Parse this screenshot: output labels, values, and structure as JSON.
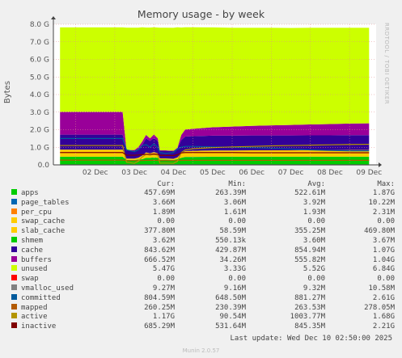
{
  "title": "Memory usage - by week",
  "watermark": "RRDTOOL / TOBI OETIKER",
  "last_update": "Last update: Wed Dec 10 02:50:00 2025",
  "footer": "Munin 2.0.57",
  "chart_data": {
    "type": "area",
    "title": "Memory usage - by week",
    "ylabel": "Bytes",
    "ylim": [
      0,
      8.0
    ],
    "yunit": "G",
    "yticks": [
      "0.0",
      "1.0 G",
      "2.0 G",
      "3.0 G",
      "4.0 G",
      "5.0 G",
      "6.0 G",
      "7.0 G",
      "8.0 G"
    ],
    "ytick_values": [
      0,
      1,
      2,
      3,
      4,
      5,
      6,
      7,
      8
    ],
    "xticks": [
      "02 Dec",
      "03 Dec",
      "04 Dec",
      "05 Dec",
      "06 Dec",
      "07 Dec",
      "08 Dec",
      "09 Dec"
    ],
    "grid": true,
    "x": [
      1.6,
      2.0,
      2.5,
      3.0,
      3.2,
      3.3,
      3.5,
      3.6,
      3.7,
      3.8,
      3.9,
      4.0,
      4.1,
      4.15,
      4.3,
      4.5,
      4.6,
      4.7,
      4.8,
      5.0,
      5.5,
      6.0,
      6.5,
      7.0,
      7.5,
      8.0,
      8.5,
      9.0,
      9.5
    ],
    "series": [
      {
        "name": "apps",
        "color": "#00cc00",
        "values": [
          0.46,
          0.46,
          0.46,
          0.46,
          0.46,
          0.28,
          0.28,
          0.3,
          0.32,
          0.4,
          0.4,
          0.42,
          0.4,
          0.3,
          0.3,
          0.28,
          0.32,
          0.4,
          0.45,
          0.45,
          0.46,
          0.46,
          0.46,
          0.46,
          0.46,
          0.46,
          0.46,
          0.46,
          0.46
        ]
      },
      {
        "name": "page_tables",
        "color": "#0066b3",
        "values": [
          0.004,
          0.004,
          0.004,
          0.004,
          0.004,
          0.003,
          0.003,
          0.003,
          0.003,
          0.003,
          0.003,
          0.003,
          0.003,
          0.003,
          0.003,
          0.003,
          0.003,
          0.003,
          0.004,
          0.004,
          0.004,
          0.004,
          0.004,
          0.004,
          0.004,
          0.004,
          0.004,
          0.004,
          0.004
        ]
      },
      {
        "name": "per_cpu",
        "color": "#ff8000",
        "values": [
          0.002,
          0.002,
          0.002,
          0.002,
          0.002,
          0.002,
          0.002,
          0.002,
          0.002,
          0.002,
          0.002,
          0.002,
          0.002,
          0.002,
          0.002,
          0.002,
          0.002,
          0.002,
          0.002,
          0.002,
          0.002,
          0.002,
          0.002,
          0.002,
          0.002,
          0.002,
          0.002,
          0.002,
          0.002
        ]
      },
      {
        "name": "swap_cache",
        "color": "#ffcc00",
        "values": [
          0,
          0,
          0,
          0,
          0,
          0,
          0,
          0,
          0,
          0,
          0,
          0,
          0,
          0,
          0,
          0,
          0,
          0,
          0,
          0,
          0,
          0,
          0,
          0,
          0,
          0,
          0,
          0,
          0
        ]
      },
      {
        "name": "slab_cache",
        "color": "#ffcc00",
        "values": [
          0.4,
          0.4,
          0.4,
          0.4,
          0.4,
          0.07,
          0.07,
          0.1,
          0.2,
          0.3,
          0.25,
          0.3,
          0.25,
          0.06,
          0.06,
          0.06,
          0.1,
          0.25,
          0.33,
          0.34,
          0.35,
          0.35,
          0.36,
          0.36,
          0.36,
          0.37,
          0.37,
          0.38,
          0.38
        ]
      },
      {
        "name": "shmem",
        "color": "#330099",
        "values": [
          0.004,
          0.004,
          0.004,
          0.004,
          0.004,
          0.001,
          0.001,
          0.001,
          0.002,
          0.003,
          0.003,
          0.003,
          0.003,
          0.001,
          0.001,
          0.001,
          0.002,
          0.003,
          0.004,
          0.004,
          0.004,
          0.004,
          0.004,
          0.004,
          0.004,
          0.004,
          0.004,
          0.004,
          0.004
        ]
      },
      {
        "name": "cache",
        "color": "#330099",
        "values": [
          0.85,
          0.85,
          0.85,
          0.85,
          0.85,
          0.45,
          0.45,
          0.5,
          0.6,
          0.8,
          0.7,
          0.8,
          0.7,
          0.43,
          0.43,
          0.43,
          0.5,
          0.75,
          0.82,
          0.83,
          0.84,
          0.84,
          0.84,
          0.84,
          0.84,
          0.84,
          0.84,
          0.84,
          0.84
        ]
      },
      {
        "name": "buffers",
        "color": "#990099",
        "values": [
          1.3,
          1.3,
          1.3,
          1.3,
          1.3,
          0.04,
          0.04,
          0.1,
          0.2,
          0.2,
          0.15,
          0.2,
          0.15,
          0.03,
          0.03,
          0.03,
          0.05,
          0.3,
          0.4,
          0.42,
          0.48,
          0.52,
          0.55,
          0.58,
          0.6,
          0.62,
          0.64,
          0.66,
          0.67
        ]
      },
      {
        "name": "unused",
        "color": "#ccff00",
        "values": [
          4.8,
          4.8,
          4.8,
          4.8,
          4.8,
          6.96,
          6.96,
          6.8,
          6.5,
          6.1,
          6.3,
          6.1,
          6.3,
          6.98,
          6.98,
          6.99,
          6.85,
          6.1,
          5.82,
          5.78,
          5.68,
          5.62,
          5.58,
          5.55,
          5.52,
          5.5,
          5.48,
          5.45,
          5.44
        ]
      }
    ],
    "lines": [
      {
        "name": "swap",
        "color": "#808080",
        "values": [
          0,
          0,
          0,
          0,
          0,
          0,
          0,
          0,
          0,
          0,
          0,
          0,
          0,
          0,
          0,
          0,
          0,
          0,
          0,
          0,
          0,
          0,
          0,
          0,
          0,
          0,
          0,
          0,
          0
        ]
      },
      {
        "name": "committed",
        "color": "#005a9c",
        "values": [
          1.5,
          1.5,
          1.5,
          1.5,
          1.5,
          0.85,
          0.75,
          0.85,
          1.1,
          1.15,
          1.0,
          1.2,
          1.0,
          0.7,
          0.65,
          0.7,
          0.9,
          1.0,
          1.05,
          1.05,
          1.02,
          1.0,
          0.98,
          0.95,
          0.9,
          0.85,
          0.82,
          0.8,
          0.8
        ]
      },
      {
        "name": "mapped",
        "color": "#b35a00",
        "values": [
          0.27,
          0.27,
          0.27,
          0.27,
          0.27,
          0.24,
          0.24,
          0.24,
          0.25,
          0.26,
          0.26,
          0.26,
          0.26,
          0.24,
          0.24,
          0.24,
          0.25,
          0.26,
          0.26,
          0.26,
          0.26,
          0.26,
          0.26,
          0.26,
          0.26,
          0.26,
          0.26,
          0.26,
          0.26
        ]
      },
      {
        "name": "active",
        "color": "#b39400",
        "values": [
          1.1,
          1.1,
          1.1,
          1.1,
          1.1,
          0.15,
          0.09,
          0.2,
          0.45,
          0.6,
          0.55,
          0.6,
          0.55,
          0.1,
          0.1,
          0.09,
          0.2,
          0.7,
          0.85,
          0.92,
          0.98,
          1.02,
          1.05,
          1.08,
          1.1,
          1.12,
          1.14,
          1.16,
          1.17
        ]
      },
      {
        "name": "inactive",
        "color": "#800000",
        "values": [
          0.7,
          0.7,
          0.7,
          0.7,
          0.7,
          0.55,
          0.55,
          0.56,
          0.58,
          0.6,
          0.6,
          0.62,
          0.6,
          0.54,
          0.54,
          0.53,
          0.58,
          0.68,
          0.7,
          0.7,
          0.7,
          0.7,
          0.69,
          0.69,
          0.69,
          0.69,
          0.69,
          0.69,
          0.69
        ]
      }
    ],
    "legend_columns": [
      "",
      "Cur:",
      "Min:",
      "Avg:",
      "Max:"
    ],
    "legend": [
      {
        "name": "apps",
        "color": "#00cc00",
        "cur": "457.69M",
        "min": "263.39M",
        "avg": "522.61M",
        "max": "1.87G"
      },
      {
        "name": "page_tables",
        "color": "#0066b3",
        "cur": "3.66M",
        "min": "3.06M",
        "avg": "3.92M",
        "max": "10.22M"
      },
      {
        "name": "per_cpu",
        "color": "#ff8000",
        "cur": "1.89M",
        "min": "1.61M",
        "avg": "1.93M",
        "max": "2.31M"
      },
      {
        "name": "swap_cache",
        "color": "#ffcc00",
        "cur": "0.00",
        "min": "0.00",
        "avg": "0.00",
        "max": "0.00"
      },
      {
        "name": "slab_cache",
        "color": "#ffcc00",
        "cur": "377.80M",
        "min": "58.59M",
        "avg": "355.25M",
        "max": "469.80M"
      },
      {
        "name": "shmem",
        "color": "#00cc00",
        "cur": "3.62M",
        "min": "550.13k",
        "avg": "3.60M",
        "max": "3.67M"
      },
      {
        "name": "cache",
        "color": "#330099",
        "cur": "843.62M",
        "min": "429.87M",
        "avg": "854.94M",
        "max": "1.07G"
      },
      {
        "name": "buffers",
        "color": "#990099",
        "cur": "666.52M",
        "min": "34.26M",
        "avg": "555.82M",
        "max": "1.04G"
      },
      {
        "name": "unused",
        "color": "#ccff00",
        "cur": "5.47G",
        "min": "3.33G",
        "avg": "5.52G",
        "max": "6.84G"
      },
      {
        "name": "swap",
        "color": "#ff0000",
        "cur": "0.00",
        "min": "0.00",
        "avg": "0.00",
        "max": "0.00"
      },
      {
        "name": "vmalloc_used",
        "color": "#808080",
        "cur": "9.27M",
        "min": "9.16M",
        "avg": "9.32M",
        "max": "10.58M"
      },
      {
        "name": "committed",
        "color": "#005a9c",
        "cur": "804.59M",
        "min": "648.50M",
        "avg": "881.27M",
        "max": "2.61G"
      },
      {
        "name": "mapped",
        "color": "#b35a00",
        "cur": "260.25M",
        "min": "230.39M",
        "avg": "263.53M",
        "max": "278.05M"
      },
      {
        "name": "active",
        "color": "#b39400",
        "cur": "1.17G",
        "min": "90.54M",
        "avg": "1003.77M",
        "max": "1.68G"
      },
      {
        "name": "inactive",
        "color": "#800000",
        "cur": "685.29M",
        "min": "531.64M",
        "avg": "845.35M",
        "max": "2.21G"
      }
    ]
  }
}
